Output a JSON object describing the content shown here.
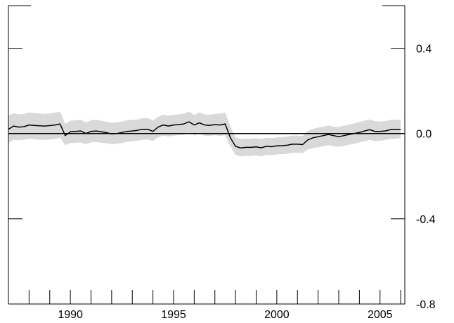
{
  "chart_data": {
    "type": "line",
    "x_ticks": [
      1990,
      1995,
      2000,
      2005
    ],
    "x_tick_labels": [
      "1990",
      "1995",
      "2000",
      "2005"
    ],
    "x_minor_ticks": [
      1988,
      1989,
      1990,
      1991,
      1992,
      1993,
      1994,
      1995,
      1996,
      1997,
      1998,
      1999,
      2000,
      2001,
      2002,
      2003,
      2004,
      2005,
      2006
    ],
    "xlim": [
      1987,
      2006.2
    ],
    "y_ticks": [
      0.4,
      0.0,
      -0.4,
      -0.8
    ],
    "y_tick_labels": [
      "0.4",
      "0.0",
      "-0.4",
      "-0.8"
    ],
    "ylim": [
      -0.8,
      0.6
    ],
    "zero_line": 0.0,
    "band_color": "#d9d9d9",
    "line_color": "#000000",
    "series": [
      {
        "x": [
          1987.0,
          1987.25,
          1987.5,
          1987.75,
          1988.0,
          1988.25,
          1988.5,
          1988.75,
          1989.0,
          1989.25,
          1989.5,
          1989.75,
          1990.0,
          1990.25,
          1990.5,
          1990.75,
          1991.0,
          1991.25,
          1991.5,
          1991.75,
          1992.0,
          1992.25,
          1992.5,
          1992.75,
          1993.0,
          1993.25,
          1993.5,
          1993.75,
          1994.0,
          1994.25,
          1994.5,
          1994.75,
          1995.0,
          1995.25,
          1995.5,
          1995.75,
          1996.0,
          1996.25,
          1996.5,
          1996.75,
          1997.0,
          1997.25,
          1997.5,
          1997.75,
          1998.0,
          1998.25,
          1998.5,
          1998.75,
          1999.0,
          1999.25,
          1999.5,
          1999.75,
          2000.0,
          2000.25,
          2000.5,
          2000.75,
          2001.0,
          2001.25,
          2001.5,
          2001.75,
          2002.0,
          2002.25,
          2002.5,
          2002.75,
          2003.0,
          2003.25,
          2003.5,
          2003.75,
          2004.0,
          2004.25,
          2004.5,
          2004.75,
          2005.0,
          2005.25,
          2005.5,
          2005.75,
          2006.0
        ],
        "values": [
          0.02,
          0.035,
          0.03,
          0.032,
          0.04,
          0.038,
          0.036,
          0.035,
          0.037,
          0.04,
          0.045,
          -0.01,
          0.008,
          0.01,
          0.012,
          0.0,
          0.01,
          0.012,
          0.008,
          0.004,
          -0.002,
          0.0,
          0.005,
          0.01,
          0.012,
          0.015,
          0.02,
          0.02,
          0.01,
          0.03,
          0.04,
          0.035,
          0.04,
          0.042,
          0.045,
          0.055,
          0.04,
          0.05,
          0.04,
          0.038,
          0.042,
          0.04,
          0.045,
          -0.02,
          -0.06,
          -0.068,
          -0.065,
          -0.065,
          -0.063,
          -0.067,
          -0.06,
          -0.062,
          -0.058,
          -0.057,
          -0.055,
          -0.05,
          -0.05,
          -0.052,
          -0.03,
          -0.02,
          -0.015,
          -0.01,
          -0.005,
          -0.01,
          -0.015,
          -0.01,
          -0.005,
          0.0,
          0.005,
          0.012,
          0.018,
          0.01,
          0.01,
          0.012,
          0.018,
          0.018,
          0.02
        ],
        "lower": [
          -0.045,
          -0.03,
          -0.032,
          -0.03,
          -0.025,
          -0.027,
          -0.03,
          -0.03,
          -0.028,
          -0.026,
          -0.02,
          -0.055,
          -0.045,
          -0.044,
          -0.042,
          -0.05,
          -0.042,
          -0.04,
          -0.044,
          -0.046,
          -0.05,
          -0.048,
          -0.045,
          -0.04,
          -0.036,
          -0.034,
          -0.03,
          -0.028,
          -0.035,
          -0.018,
          -0.01,
          -0.014,
          -0.01,
          -0.008,
          -0.005,
          0.005,
          -0.008,
          0.0,
          -0.01,
          -0.012,
          -0.008,
          -0.012,
          -0.008,
          -0.06,
          -0.1,
          -0.108,
          -0.105,
          -0.105,
          -0.103,
          -0.107,
          -0.1,
          -0.102,
          -0.098,
          -0.097,
          -0.095,
          -0.09,
          -0.09,
          -0.092,
          -0.075,
          -0.068,
          -0.065,
          -0.06,
          -0.055,
          -0.06,
          -0.062,
          -0.058,
          -0.053,
          -0.048,
          -0.042,
          -0.036,
          -0.03,
          -0.036,
          -0.034,
          -0.03,
          -0.026,
          -0.024,
          -0.022
        ],
        "upper": [
          0.085,
          0.095,
          0.09,
          0.092,
          0.098,
          0.096,
          0.094,
          0.092,
          0.094,
          0.098,
          0.102,
          0.045,
          0.06,
          0.062,
          0.064,
          0.052,
          0.062,
          0.064,
          0.06,
          0.055,
          0.05,
          0.052,
          0.056,
          0.062,
          0.064,
          0.066,
          0.072,
          0.072,
          0.06,
          0.078,
          0.088,
          0.084,
          0.088,
          0.09,
          0.093,
          0.102,
          0.088,
          0.098,
          0.09,
          0.088,
          0.092,
          0.094,
          0.098,
          0.035,
          -0.018,
          -0.026,
          -0.024,
          -0.024,
          -0.022,
          -0.026,
          -0.02,
          -0.022,
          -0.018,
          -0.017,
          -0.015,
          -0.01,
          -0.01,
          -0.012,
          0.012,
          0.022,
          0.028,
          0.032,
          0.037,
          0.032,
          0.03,
          0.036,
          0.042,
          0.048,
          0.054,
          0.06,
          0.066,
          0.058,
          0.056,
          0.058,
          0.064,
          0.064,
          0.066
        ]
      }
    ]
  }
}
